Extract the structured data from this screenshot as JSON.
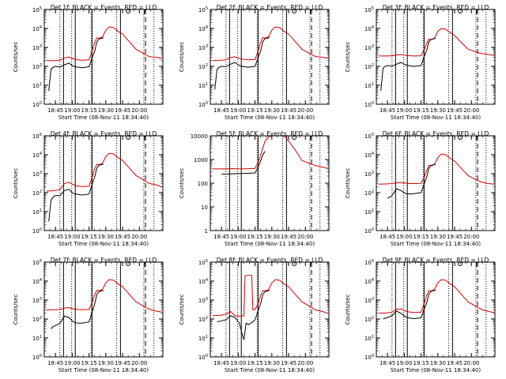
{
  "figure": {
    "colors": {
      "events": "#000000",
      "lld": "#d40000",
      "axes": "#000000",
      "background": "#ffffff"
    },
    "xtick_labels": [
      "18:45",
      "19:00",
      "19:15",
      "19:30",
      "19:45",
      "20:00"
    ],
    "xtick_values_min": [
      0,
      15,
      30,
      45,
      60,
      75
    ],
    "ylabel": "Counts/sec",
    "xlabel": "Start Time (08-Nov-11 18:34:40)",
    "vline_solid_min": [
      7.2,
      17.7,
      32.7,
      58.1
    ],
    "vline_dotted_min": [
      4.0,
      14.5,
      31.9,
      54.7,
      79.0,
      88.0
    ],
    "vline_dashed_min": 80.5,
    "circle_marker_min": 65.0,
    "bracket_marker_min": 79.5
  },
  "chart_data": [
    {
      "type": "line",
      "title": "Det 1f: BLACK = Events, RED = LLD",
      "xlabel": "Start Time (08-Nov-11 18:34:40)",
      "ylabel": "Counts/sec",
      "x_unit": "minutes after 18:34:40",
      "xlim": [
        -10,
        96
      ],
      "yscale": "log",
      "ylim": [
        1,
        100000
      ],
      "ytick_labels": [
        "10^0",
        "10^1",
        "10^2",
        "10^3",
        "10^4",
        "10^5"
      ],
      "series": [
        {
          "color": "#d40000",
          "x": [
            -8,
            0,
            4,
            8,
            12,
            16,
            20,
            24,
            30,
            33,
            35,
            37,
            39,
            42,
            45,
            48,
            52,
            56,
            60,
            66,
            72,
            78,
            84,
            90,
            95
          ],
          "y": [
            200,
            200,
            210,
            280,
            310,
            250,
            220,
            210,
            220,
            700,
            1800,
            3200,
            3000,
            3500,
            8000,
            12000,
            11000,
            7000,
            5000,
            2000,
            800,
            500,
            320,
            300,
            250
          ]
        },
        {
          "color": "#000000",
          "x": [
            -6,
            -4,
            -2,
            0,
            4,
            8,
            12,
            16,
            20,
            24,
            30,
            33,
            35,
            37,
            39,
            41,
            43
          ],
          "y": [
            5,
            70,
            90,
            100,
            90,
            120,
            150,
            100,
            90,
            85,
            95,
            300,
            600,
            2000,
            2800,
            3000,
            3200
          ]
        }
      ]
    },
    {
      "type": "line",
      "title": "Det 2f: BLACK = Events, RED = LLD",
      "xlabel": "Start Time (08-Nov-11 18:34:40)",
      "ylabel": "Counts/sec",
      "x_unit": "minutes after 18:34:40",
      "xlim": [
        -10,
        96
      ],
      "yscale": "log",
      "ylim": [
        1,
        100000
      ],
      "ytick_labels": [
        "10^0",
        "10^1",
        "10^2",
        "10^3",
        "10^4",
        "10^5"
      ],
      "series": [
        {
          "color": "#d40000",
          "x": [
            -8,
            0,
            4,
            8,
            12,
            16,
            20,
            24,
            30,
            33,
            35,
            37,
            39,
            42,
            45,
            48,
            52,
            56,
            60,
            66,
            72,
            78,
            84,
            90,
            95
          ],
          "y": [
            200,
            210,
            220,
            290,
            320,
            260,
            230,
            220,
            230,
            700,
            1900,
            3300,
            3100,
            3600,
            8000,
            12000,
            11000,
            7000,
            5000,
            2000,
            800,
            500,
            330,
            300,
            260
          ]
        },
        {
          "color": "#000000",
          "x": [
            -6,
            -4,
            -2,
            0,
            4,
            8,
            12,
            16,
            20,
            24,
            30,
            33,
            35,
            37,
            39,
            41,
            43
          ],
          "y": [
            6,
            70,
            90,
            100,
            95,
            130,
            160,
            110,
            95,
            90,
            100,
            320,
            650,
            2100,
            2900,
            3100,
            3300
          ]
        }
      ]
    },
    {
      "type": "line",
      "title": "Det 3f: BLACK = Events, RED = LLD",
      "xlabel": "Start Time (08-Nov-11 18:34:40)",
      "ylabel": "Counts/sec",
      "x_unit": "minutes after 18:34:40",
      "xlim": [
        -10,
        96
      ],
      "yscale": "log",
      "ylim": [
        1,
        100000
      ],
      "ytick_labels": [
        "10^0",
        "10^1",
        "10^2",
        "10^3",
        "10^4",
        "10^5"
      ],
      "series": [
        {
          "color": "#d40000",
          "x": [
            -8,
            0,
            4,
            8,
            12,
            16,
            20,
            24,
            30,
            33,
            35,
            37,
            39,
            42,
            45,
            48,
            52,
            56,
            60,
            66,
            72,
            78,
            84,
            90,
            95
          ],
          "y": [
            350,
            350,
            360,
            400,
            420,
            380,
            360,
            350,
            360,
            800,
            1600,
            2800,
            2600,
            3000,
            7000,
            10000,
            9000,
            6000,
            4200,
            1800,
            800,
            600,
            480,
            420,
            380
          ]
        },
        {
          "color": "#000000",
          "x": [
            -6,
            -4,
            -2,
            0,
            4,
            8,
            12,
            16,
            20,
            24,
            30,
            33,
            35,
            37,
            39,
            41,
            43
          ],
          "y": [
            5,
            80,
            100,
            110,
            100,
            130,
            160,
            120,
            105,
            100,
            110,
            350,
            700,
            2000,
            2600,
            2800,
            3000
          ]
        }
      ]
    },
    {
      "type": "line",
      "title": "Det 4f: BLACK = Events, RED = LLD",
      "xlabel": "Start Time (08-Nov-11 18:34:40)",
      "ylabel": "Counts/sec",
      "x_unit": "minutes after 18:34:40",
      "xlim": [
        -10,
        96
      ],
      "yscale": "log",
      "ylim": [
        1,
        100000
      ],
      "ytick_labels": [
        "10^0",
        "10^1",
        "10^2",
        "10^3",
        "10^4",
        "10^5"
      ],
      "series": [
        {
          "color": "#d40000",
          "x": [
            -8,
            0,
            4,
            8,
            12,
            16,
            20,
            24,
            30,
            33,
            35,
            37,
            39,
            42,
            45,
            48,
            52,
            56,
            60,
            66,
            72,
            78,
            84,
            90,
            95
          ],
          "y": [
            120,
            130,
            150,
            300,
            350,
            260,
            220,
            210,
            220,
            700,
            1800,
            3200,
            3000,
            3500,
            8000,
            12000,
            11000,
            7000,
            5000,
            2000,
            800,
            500,
            300,
            260,
            200
          ]
        },
        {
          "color": "#000000",
          "x": [
            -6,
            -4,
            -2,
            0,
            4,
            8,
            12,
            16,
            20,
            24,
            30,
            33,
            35,
            37,
            39,
            41,
            43
          ],
          "y": [
            3,
            40,
            60,
            70,
            70,
            130,
            150,
            90,
            80,
            75,
            85,
            300,
            650,
            2000,
            2800,
            3000,
            3200
          ]
        }
      ]
    },
    {
      "type": "line",
      "title": "Det 5f: BLACK = Events, RED = LLD",
      "xlabel": "Start Time (08-Nov-11 18:34:40)",
      "ylabel": "Counts/sec",
      "x_unit": "minutes after 18:34:40",
      "xlim": [
        -10,
        96
      ],
      "yscale": "log",
      "ylim": [
        1,
        10000
      ],
      "ytick_labels": [
        "1",
        "10",
        "100",
        "1000",
        "10000"
      ],
      "series": [
        {
          "color": "#d40000",
          "x": [
            -8,
            0,
            10,
            20,
            30,
            33,
            35,
            37,
            39,
            42,
            45,
            48,
            52,
            56,
            60,
            66,
            72,
            78,
            84,
            90,
            95
          ],
          "y": [
            400,
            400,
            410,
            400,
            420,
            800,
            1600,
            3200,
            6000,
            9000,
            10000,
            10000,
            10000,
            10000,
            6000,
            2500,
            900,
            700,
            550,
            480,
            420
          ]
        },
        {
          "color": "#000000",
          "x": [
            0,
            10,
            20,
            30,
            33,
            35,
            37,
            39
          ],
          "y": [
            240,
            250,
            260,
            270,
            500,
            900,
            1600,
            2200
          ]
        }
      ]
    },
    {
      "type": "line",
      "title": "Det 6f: BLACK = Events, RED = LLD",
      "xlabel": "Start Time (08-Nov-11 18:34:40)",
      "ylabel": "Counts/sec",
      "x_unit": "minutes after 18:34:40",
      "xlim": [
        -10,
        96
      ],
      "yscale": "log",
      "ylim": [
        1,
        100000
      ],
      "ytick_labels": [
        "10^0",
        "10^1",
        "10^2",
        "10^3",
        "10^4",
        "10^5"
      ],
      "series": [
        {
          "color": "#d40000",
          "x": [
            -8,
            0,
            4,
            8,
            12,
            16,
            20,
            24,
            30,
            33,
            35,
            37,
            39,
            42,
            45,
            48,
            52,
            56,
            60,
            66,
            72,
            78,
            84,
            90,
            95
          ],
          "y": [
            280,
            290,
            300,
            330,
            340,
            320,
            300,
            300,
            310,
            700,
            1500,
            2800,
            2700,
            3200,
            7000,
            11000,
            10000,
            6500,
            4600,
            1900,
            800,
            520,
            360,
            300,
            280
          ]
        },
        {
          "color": "#000000",
          "x": [
            0,
            4,
            8,
            12,
            16,
            20,
            24,
            30,
            33,
            35,
            37,
            39,
            41,
            43
          ],
          "y": [
            50,
            70,
            160,
            130,
            90,
            85,
            90,
            100,
            320,
            650,
            2000,
            2700,
            2900,
            3100
          ]
        }
      ]
    },
    {
      "type": "line",
      "title": "Det 7f: BLACK = Events, RED = LLD",
      "xlabel": "Start Time (08-Nov-11 18:34:40)",
      "ylabel": "Counts/sec",
      "x_unit": "minutes after 18:34:40",
      "xlim": [
        -10,
        96
      ],
      "yscale": "log",
      "ylim": [
        1,
        100000
      ],
      "ytick_labels": [
        "10^0",
        "10^1",
        "10^2",
        "10^3",
        "10^4",
        "10^5"
      ],
      "series": [
        {
          "color": "#d40000",
          "x": [
            -8,
            0,
            4,
            8,
            12,
            16,
            20,
            24,
            30,
            33,
            35,
            37,
            39,
            42,
            45,
            48,
            52,
            56,
            60,
            66,
            72,
            78,
            84,
            90,
            95
          ],
          "y": [
            300,
            310,
            320,
            380,
            400,
            340,
            320,
            310,
            320,
            800,
            1900,
            3300,
            3100,
            3600,
            8000,
            12000,
            11000,
            7000,
            5000,
            2000,
            800,
            500,
            330,
            260,
            230
          ]
        },
        {
          "color": "#000000",
          "x": [
            -4,
            -2,
            0,
            4,
            8,
            12,
            16,
            20,
            24,
            30,
            33,
            35,
            37,
            39,
            41,
            43
          ],
          "y": [
            30,
            40,
            45,
            60,
            140,
            120,
            70,
            60,
            60,
            70,
            250,
            600,
            2000,
            2800,
            3000,
            3200
          ]
        }
      ]
    },
    {
      "type": "line",
      "title": "Det 8f: BLACK = Events, RED = LLD",
      "xlabel": "Start Time (08-Nov-11 18:34:40)",
      "ylabel": "Counts/sec",
      "x_unit": "minutes after 18:34:40",
      "xlim": [
        -10,
        96
      ],
      "yscale": "log",
      "ylim": [
        1,
        100000
      ],
      "ytick_labels": [
        "10^0",
        "10^1",
        "10^2",
        "10^3",
        "10^4",
        "10^5"
      ],
      "series": [
        {
          "color": "#d40000",
          "x": [
            -8,
            0,
            4,
            8,
            12,
            16,
            20,
            21,
            22,
            27,
            28,
            30,
            33,
            35,
            37,
            39,
            42,
            45,
            48,
            52,
            56,
            60,
            66,
            72,
            78,
            84,
            90,
            95
          ],
          "y": [
            150,
            160,
            180,
            250,
            150,
            140,
            150,
            18000,
            20000,
            20000,
            300,
            320,
            700,
            1800,
            3200,
            3000,
            3500,
            8000,
            12000,
            11000,
            7000,
            5000,
            2000,
            800,
            500,
            300,
            250,
            200
          ]
        },
        {
          "color": "#000000",
          "x": [
            -4,
            0,
            4,
            8,
            12,
            16,
            18,
            20,
            22,
            24,
            28,
            30,
            33,
            35,
            37,
            39,
            41,
            43
          ],
          "y": [
            70,
            80,
            90,
            150,
            120,
            60,
            20,
            8,
            60,
            50,
            70,
            90,
            300,
            650,
            2000,
            2800,
            3000,
            3200
          ]
        }
      ]
    },
    {
      "type": "line",
      "title": "Det 9f: BLACK = Events, RED = LLD",
      "xlabel": "Start Time (08-Nov-11 18:34:40)",
      "ylabel": "Counts/sec",
      "x_unit": "minutes after 18:34:40",
      "xlim": [
        -10,
        96
      ],
      "yscale": "log",
      "ylim": [
        1,
        100000
      ],
      "ytick_labels": [
        "10^0",
        "10^1",
        "10^2",
        "10^3",
        "10^4",
        "10^5"
      ],
      "series": [
        {
          "color": "#d40000",
          "x": [
            -8,
            0,
            4,
            8,
            12,
            16,
            20,
            24,
            30,
            33,
            35,
            37,
            39,
            42,
            45,
            48,
            52,
            56,
            60,
            66,
            72,
            78,
            84,
            90,
            95
          ],
          "y": [
            200,
            210,
            230,
            320,
            350,
            260,
            230,
            220,
            230,
            700,
            1800,
            3200,
            3000,
            3500,
            8000,
            12000,
            11000,
            7000,
            5000,
            2000,
            800,
            500,
            320,
            250,
            220
          ]
        },
        {
          "color": "#000000",
          "x": [
            -4,
            -2,
            0,
            4,
            8,
            12,
            16,
            20,
            24,
            30,
            33,
            35,
            37,
            39,
            41,
            43
          ],
          "y": [
            100,
            110,
            120,
            150,
            260,
            200,
            130,
            110,
            105,
            115,
            350,
            700,
            2100,
            2900,
            3100,
            3300
          ]
        }
      ]
    }
  ]
}
